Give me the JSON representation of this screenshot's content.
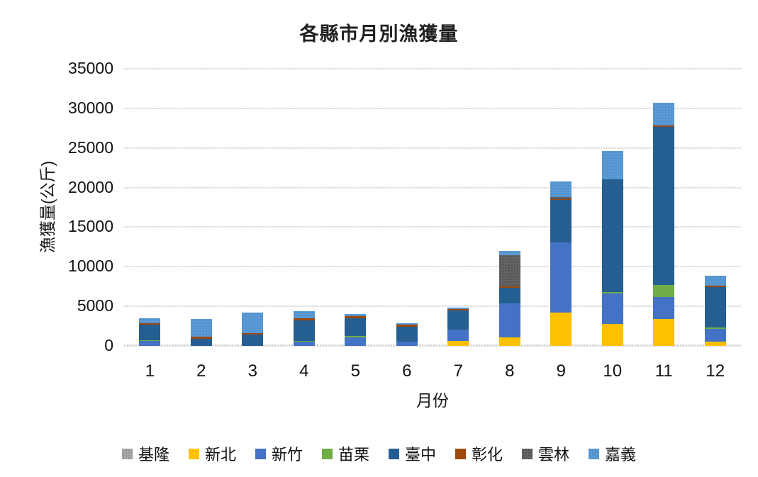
{
  "chart_data": {
    "type": "bar",
    "stacked": true,
    "title": "各縣市月別漁獲量",
    "xlabel": "月份",
    "ylabel": "漁獲量(公斤)",
    "ylim": [
      0,
      35000
    ],
    "yticks": [
      0,
      5000,
      10000,
      15000,
      20000,
      25000,
      30000,
      35000
    ],
    "grid": "horizontal",
    "legend_position": "bottom",
    "categories": [
      "1",
      "2",
      "3",
      "4",
      "5",
      "6",
      "7",
      "8",
      "9",
      "10",
      "11",
      "12"
    ],
    "series": [
      {
        "name": "基隆",
        "color": "#a6a6a6",
        "texture": "dotted",
        "texture_color": "#8f8f8f",
        "values": [
          0,
          0,
          0,
          0,
          0,
          0,
          0,
          0,
          0,
          0,
          0,
          0
        ]
      },
      {
        "name": "新北",
        "color": "#ffc000",
        "texture": "none",
        "texture_color": "",
        "values": [
          0,
          0,
          0,
          0,
          0,
          0,
          650,
          1100,
          4200,
          2800,
          3400,
          550
        ]
      },
      {
        "name": "新竹",
        "color": "#4472c4",
        "texture": "none",
        "texture_color": "",
        "values": [
          600,
          0,
          0,
          500,
          1100,
          550,
          1400,
          4300,
          8900,
          3800,
          2800,
          1600
        ]
      },
      {
        "name": "苗栗",
        "color": "#70ad47",
        "texture": "none",
        "texture_color": "",
        "values": [
          150,
          0,
          0,
          150,
          150,
          0,
          0,
          0,
          0,
          250,
          1500,
          150
        ]
      },
      {
        "name": "臺中",
        "color": "#255e91",
        "texture": "none",
        "texture_color": "",
        "values": [
          1950,
          900,
          1400,
          2600,
          2200,
          1900,
          2400,
          1900,
          5300,
          14200,
          20000,
          5100
        ]
      },
      {
        "name": "彰化",
        "color": "#9e480e",
        "texture": "none",
        "texture_color": "",
        "values": [
          200,
          250,
          250,
          250,
          350,
          250,
          200,
          250,
          100,
          0,
          150,
          200
        ]
      },
      {
        "name": "雲林",
        "color": "#636363",
        "texture": "dotted",
        "texture_color": "#4d4d4d",
        "values": [
          0,
          0,
          0,
          0,
          0,
          0,
          0,
          3900,
          300,
          0,
          0,
          0
        ]
      },
      {
        "name": "嘉義",
        "color": "#5b9bd5",
        "texture": "dotted",
        "texture_color": "#4a88c2",
        "values": [
          600,
          2250,
          2600,
          900,
          200,
          150,
          150,
          550,
          2000,
          3600,
          2900,
          1300
        ]
      }
    ]
  }
}
